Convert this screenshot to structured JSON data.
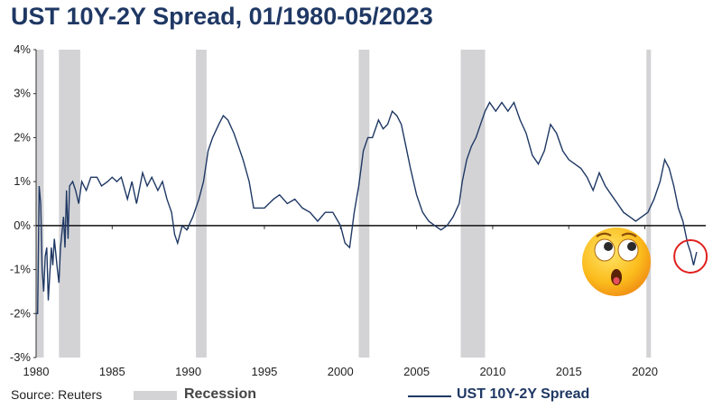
{
  "title": "UST 10Y-2Y Spread, 01/1980-05/2023",
  "source": "Source: Reuters",
  "legend": {
    "recession": "Recession",
    "series": "UST 10Y-2Y Spread"
  },
  "colors": {
    "line": "#1f3864",
    "recession": "#d3d3d6",
    "circle": "#e0201e",
    "title": "#1f3864"
  },
  "decoration": {
    "emoji_icon": "astonished-face-emoji-icon"
  },
  "chart_data": {
    "type": "line",
    "title": "UST 10Y-2Y Spread, 01/1980-05/2023",
    "xlim": [
      1980,
      2024
    ],
    "ylim": [
      -3,
      4
    ],
    "yticks": [
      "-3%",
      "-2%",
      "-1%",
      "0%",
      "1%",
      "2%",
      "3%",
      "4%"
    ],
    "xticks": [
      "1980",
      "1985",
      "1990",
      "1995",
      "2000",
      "2005",
      "2010",
      "2015",
      "2020"
    ],
    "recessions": [
      [
        1980.0,
        1980.5
      ],
      [
        1981.5,
        1982.9
      ],
      [
        1990.5,
        1991.2
      ],
      [
        2001.2,
        2001.9
      ],
      [
        2007.9,
        2009.5
      ],
      [
        2020.1,
        2020.4
      ]
    ],
    "series": [
      {
        "name": "UST 10Y-2Y Spread",
        "x": [
          1980.0,
          1980.1,
          1980.2,
          1980.3,
          1980.4,
          1980.5,
          1980.6,
          1980.7,
          1980.8,
          1981.0,
          1981.1,
          1981.2,
          1981.4,
          1981.5,
          1981.6,
          1981.8,
          1981.9,
          1982.0,
          1982.1,
          1982.2,
          1982.4,
          1982.6,
          1982.8,
          1983.0,
          1983.3,
          1983.6,
          1984.0,
          1984.3,
          1984.7,
          1985.0,
          1985.3,
          1985.6,
          1986.0,
          1986.3,
          1986.6,
          1987.0,
          1987.3,
          1987.6,
          1988.0,
          1988.3,
          1988.6,
          1988.9,
          1989.1,
          1989.3,
          1989.6,
          1989.9,
          1990.3,
          1990.7,
          1991.0,
          1991.3,
          1991.6,
          1992.0,
          1992.3,
          1992.6,
          1993.0,
          1993.3,
          1993.6,
          1994.0,
          1994.3,
          1994.6,
          1995.0,
          1995.3,
          1995.6,
          1996.0,
          1996.5,
          1997.0,
          1997.5,
          1998.0,
          1998.5,
          1999.0,
          1999.5,
          2000.0,
          2000.3,
          2000.6,
          2000.9,
          2001.2,
          2001.5,
          2001.8,
          2002.1,
          2002.5,
          2002.8,
          2003.1,
          2003.4,
          2003.7,
          2004.0,
          2004.3,
          2004.6,
          2005.0,
          2005.4,
          2005.8,
          2006.2,
          2006.6,
          2007.0,
          2007.4,
          2007.8,
          2008.0,
          2008.3,
          2008.6,
          2008.9,
          2009.2,
          2009.5,
          2009.8,
          2010.2,
          2010.6,
          2011.0,
          2011.4,
          2011.8,
          2012.2,
          2012.6,
          2013.0,
          2013.4,
          2013.8,
          2014.2,
          2014.6,
          2015.0,
          2015.4,
          2015.8,
          2016.2,
          2016.6,
          2017.0,
          2017.4,
          2017.8,
          2018.2,
          2018.6,
          2019.0,
          2019.4,
          2019.8,
          2020.2,
          2020.6,
          2021.0,
          2021.3,
          2021.6,
          2021.9,
          2022.2,
          2022.5,
          2022.8,
          2023.0,
          2023.2,
          2023.4
        ],
        "values": [
          -2.0,
          -2.0,
          0.9,
          0.5,
          -1.0,
          -1.5,
          -0.7,
          -0.5,
          -1.7,
          -0.5,
          -0.9,
          -0.3,
          -1.0,
          -1.3,
          -0.5,
          0.2,
          -0.5,
          0.8,
          -0.3,
          0.9,
          1.0,
          0.8,
          0.5,
          1.0,
          0.8,
          1.1,
          1.1,
          0.9,
          1.0,
          1.1,
          1.0,
          1.1,
          0.6,
          1.0,
          0.5,
          1.2,
          0.9,
          1.1,
          0.8,
          1.0,
          0.6,
          0.3,
          -0.2,
          -0.4,
          0.0,
          -0.1,
          0.2,
          0.6,
          1.0,
          1.7,
          2.0,
          2.3,
          2.5,
          2.4,
          2.1,
          1.8,
          1.5,
          1.0,
          0.4,
          0.4,
          0.4,
          0.5,
          0.6,
          0.7,
          0.5,
          0.6,
          0.4,
          0.3,
          0.1,
          0.3,
          0.3,
          0.0,
          -0.4,
          -0.5,
          0.3,
          0.9,
          1.7,
          2.0,
          2.0,
          2.4,
          2.2,
          2.3,
          2.6,
          2.5,
          2.3,
          1.8,
          1.3,
          0.7,
          0.3,
          0.1,
          0.0,
          -0.1,
          0.0,
          0.2,
          0.5,
          1.0,
          1.5,
          1.8,
          2.0,
          2.3,
          2.6,
          2.8,
          2.6,
          2.8,
          2.6,
          2.8,
          2.4,
          2.1,
          1.6,
          1.4,
          1.7,
          2.3,
          2.1,
          1.7,
          1.5,
          1.4,
          1.3,
          1.1,
          0.8,
          1.2,
          0.9,
          0.7,
          0.5,
          0.3,
          0.2,
          0.1,
          0.2,
          0.3,
          0.6,
          1.0,
          1.5,
          1.3,
          0.9,
          0.4,
          0.1,
          -0.4,
          -0.6,
          -0.9,
          -0.6
        ]
      }
    ],
    "annotation": {
      "type": "circle",
      "x": 2023.0,
      "y": -0.7
    }
  }
}
